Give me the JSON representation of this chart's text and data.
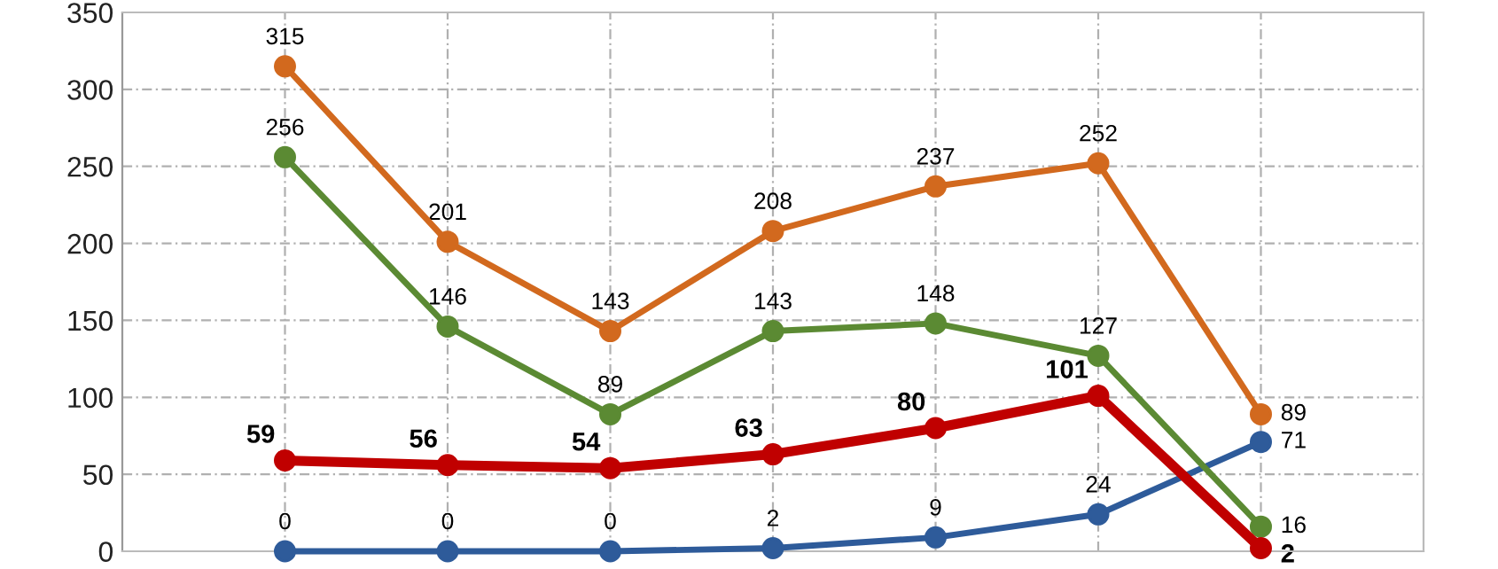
{
  "chart_data": {
    "type": "line",
    "categories": [
      null,
      null,
      null,
      null,
      null,
      null,
      null
    ],
    "series": [
      {
        "color": "#2e5b9a",
        "values": [
          0,
          0,
          0,
          2,
          9,
          24,
          71
        ]
      },
      {
        "color": "#d2691e",
        "values": [
          315,
          201,
          143,
          208,
          237,
          252,
          89
        ]
      },
      {
        "color": "#5b8a33",
        "values": [
          256,
          146,
          89,
          143,
          148,
          127,
          16
        ]
      },
      {
        "color": "#c00000",
        "values": [
          59,
          56,
          54,
          63,
          80,
          101,
          2
        ]
      }
    ],
    "ylim": [
      0,
      350
    ],
    "yticks": [
      0,
      50,
      100,
      150,
      200,
      250,
      300,
      350
    ],
    "grid": true,
    "marker": "circle",
    "line_style": "solid",
    "data_labels": true,
    "tick_labels": "y"
  }
}
